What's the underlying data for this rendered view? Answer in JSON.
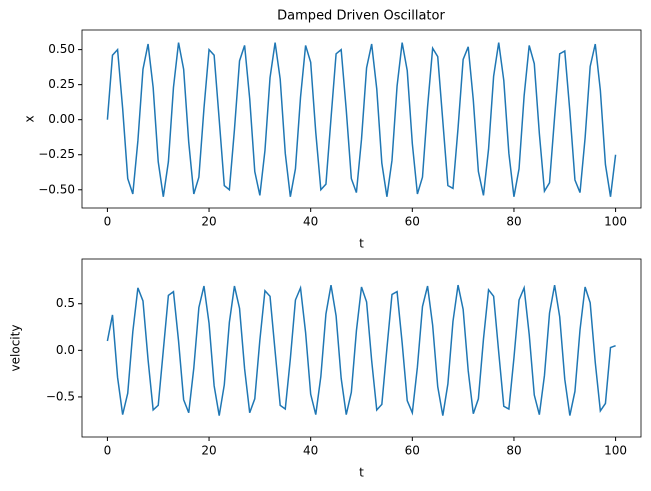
{
  "chart_data": [
    {
      "type": "line",
      "title": "Damped Driven Oscillator",
      "xlabel": "t",
      "ylabel": "x",
      "x": [
        0,
        1,
        2,
        3,
        4,
        5,
        6,
        7,
        8,
        9,
        10,
        11,
        12,
        13,
        14,
        15,
        16,
        17,
        18,
        19,
        20,
        21,
        22,
        23,
        24,
        25,
        26,
        27,
        28,
        29,
        30,
        31,
        32,
        33,
        34,
        35,
        36,
        37,
        38,
        39,
        40,
        41,
        42,
        43,
        44,
        45,
        46,
        47,
        48,
        49,
        50,
        51,
        52,
        53,
        54,
        55,
        56,
        57,
        58,
        59,
        60,
        61,
        62,
        63,
        64,
        65,
        66,
        67,
        68,
        69,
        70,
        71,
        72,
        73,
        74,
        75,
        76,
        77,
        78,
        79,
        80,
        81,
        82,
        83,
        84,
        85,
        86,
        87,
        88,
        89,
        90,
        91,
        92,
        93,
        94,
        95,
        96,
        97,
        98,
        99,
        100
      ],
      "series": [
        {
          "name": "x",
          "color": "#1f77b4",
          "values": [
            0,
            0.46,
            0.5,
            0.08,
            -0.42,
            -0.53,
            -0.15,
            0.36,
            0.54,
            0.23,
            -0.3,
            -0.55,
            -0.3,
            0.23,
            0.55,
            0.36,
            -0.16,
            -0.53,
            -0.41,
            0.08,
            0.5,
            0.46,
            0,
            -0.47,
            -0.5,
            -0.07,
            0.42,
            0.53,
            0.15,
            -0.37,
            -0.54,
            -0.22,
            0.3,
            0.55,
            0.29,
            -0.24,
            -0.55,
            -0.35,
            0.16,
            0.53,
            0.41,
            -0.09,
            -0.5,
            -0.46,
            0.01,
            0.47,
            0.5,
            0.07,
            -0.42,
            -0.52,
            -0.14,
            0.37,
            0.54,
            0.22,
            -0.31,
            -0.55,
            -0.29,
            0.24,
            0.55,
            0.35,
            -0.17,
            -0.53,
            -0.41,
            0.09,
            0.51,
            0.45,
            -0.01,
            -0.47,
            -0.49,
            -0.06,
            0.43,
            0.52,
            0.14,
            -0.37,
            -0.54,
            -0.21,
            0.31,
            0.55,
            0.28,
            -0.24,
            -0.55,
            -0.35,
            0.17,
            0.53,
            0.4,
            -0.1,
            -0.51,
            -0.45,
            0.02,
            0.47,
            0.49,
            0.06,
            -0.43,
            -0.52,
            -0.13,
            0.38,
            0.54,
            0.21,
            -0.32,
            -0.55,
            -0.25
          ]
        }
      ],
      "xlim": [
        -5,
        105
      ],
      "xticks": [
        0,
        20,
        40,
        60,
        80,
        100
      ],
      "ylim": [
        -0.63,
        0.64
      ],
      "yticks": [
        {
          "value": -0.5,
          "label": "−0.50"
        },
        {
          "value": -0.25,
          "label": "−0.25"
        },
        {
          "value": 0,
          "label": "0.00"
        },
        {
          "value": 0.25,
          "label": "0.25"
        },
        {
          "value": 0.5,
          "label": "0.50"
        }
      ]
    },
    {
      "type": "line",
      "xlabel": "t",
      "ylabel": "velocity",
      "x": [
        0,
        1,
        2,
        3,
        4,
        5,
        6,
        7,
        8,
        9,
        10,
        11,
        12,
        13,
        14,
        15,
        16,
        17,
        18,
        19,
        20,
        21,
        22,
        23,
        24,
        25,
        26,
        27,
        28,
        29,
        30,
        31,
        32,
        33,
        34,
        35,
        36,
        37,
        38,
        39,
        40,
        41,
        42,
        43,
        44,
        45,
        46,
        47,
        48,
        49,
        50,
        51,
        52,
        53,
        54,
        55,
        56,
        57,
        58,
        59,
        60,
        61,
        62,
        63,
        64,
        65,
        66,
        67,
        68,
        69,
        70,
        71,
        72,
        73,
        74,
        75,
        76,
        77,
        78,
        79,
        80,
        81,
        82,
        83,
        84,
        85,
        86,
        87,
        88,
        89,
        90,
        91,
        92,
        93,
        94,
        95,
        96,
        97,
        98,
        99,
        100
      ],
      "series": [
        {
          "name": "velocity",
          "color": "#1f77b4",
          "values": [
            0.1,
            0.38,
            -0.29,
            -0.69,
            -0.46,
            0.2,
            0.67,
            0.53,
            -0.1,
            -0.64,
            -0.59,
            0,
            0.59,
            0.63,
            0.1,
            -0.53,
            -0.67,
            -0.19,
            0.46,
            0.69,
            0.29,
            -0.38,
            -0.7,
            -0.37,
            0.3,
            0.69,
            0.45,
            -0.2,
            -0.67,
            -0.52,
            0.11,
            0.64,
            0.58,
            -0.01,
            -0.59,
            -0.63,
            -0.09,
            0.54,
            0.67,
            0.19,
            -0.47,
            -0.69,
            -0.28,
            0.39,
            0.7,
            0.37,
            -0.3,
            -0.69,
            -0.45,
            0.21,
            0.68,
            0.52,
            -0.11,
            -0.64,
            -0.58,
            0.02,
            0.6,
            0.63,
            0.08,
            -0.54,
            -0.67,
            -0.18,
            0.47,
            0.69,
            0.27,
            -0.39,
            -0.7,
            -0.36,
            0.31,
            0.7,
            0.44,
            -0.22,
            -0.68,
            -0.52,
            0.12,
            0.65,
            0.58,
            -0.02,
            -0.6,
            -0.63,
            -0.08,
            0.54,
            0.67,
            0.17,
            -0.48,
            -0.69,
            -0.27,
            0.4,
            0.7,
            0.36,
            -0.31,
            -0.7,
            -0.44,
            0.22,
            0.68,
            0.51,
            -0.13,
            -0.65,
            -0.57,
            0.03,
            0.05
          ]
        }
      ],
      "xlim": [
        -5,
        105
      ],
      "xticks": [
        0,
        20,
        40,
        60,
        80,
        100
      ],
      "ylim": [
        -0.93,
        0.98
      ],
      "yticks": [
        {
          "value": -0.5,
          "label": "−0.5"
        },
        {
          "value": 0,
          "label": "0.0"
        },
        {
          "value": 0.5,
          "label": "0.5"
        }
      ]
    }
  ]
}
